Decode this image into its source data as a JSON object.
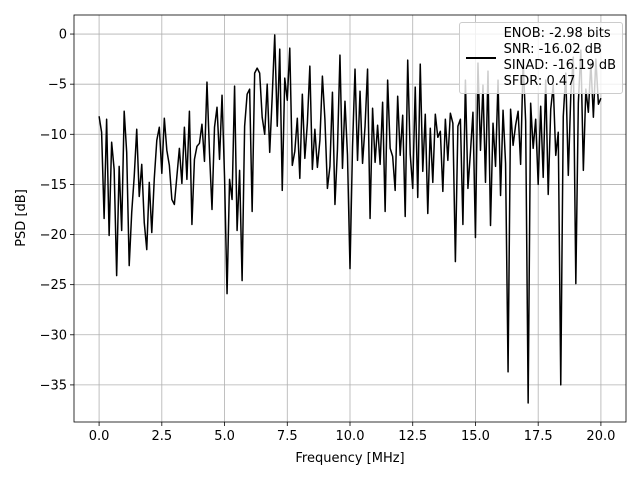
{
  "chart_data": {
    "type": "line",
    "xlabel": "Frequency [MHz]",
    "ylabel": "PSD [dB]",
    "xlim": [
      -1.0,
      21.0
    ],
    "ylim": [
      -38.7,
      1.9
    ],
    "xticks": [
      {
        "value": 0,
        "label": "0.0"
      },
      2.5,
      {
        "value": 5,
        "label": "5.0"
      },
      7.5,
      {
        "value": 10,
        "label": "10.0"
      },
      12.5,
      {
        "value": 15,
        "label": "15.0"
      },
      17.5,
      {
        "value": 20,
        "label": "20.0"
      }
    ],
    "yticks": [
      0,
      {
        "value": -5,
        "label": "−5"
      },
      {
        "value": -10,
        "label": "−10"
      },
      {
        "value": -15,
        "label": "−15"
      },
      {
        "value": -20,
        "label": "−20"
      },
      {
        "value": -25,
        "label": "−25"
      },
      {
        "value": -30,
        "label": "−30"
      },
      {
        "value": -35,
        "label": "−35"
      }
    ],
    "grid": true,
    "legend": "upper right",
    "x": [
      0,
      0.1,
      0.2,
      0.3,
      0.4,
      0.5,
      0.6,
      0.7,
      0.8,
      0.9,
      1,
      1.1,
      1.2,
      1.3,
      1.4,
      1.5,
      1.6,
      1.7,
      1.8,
      1.9,
      2,
      2.1,
      2.2,
      2.3,
      2.4,
      2.5,
      2.6,
      2.7,
      2.8,
      2.9,
      3,
      3.1,
      3.2,
      3.3,
      3.4,
      3.5,
      3.6,
      3.7,
      3.8,
      3.9,
      4,
      4.1,
      4.2,
      4.3,
      4.4,
      4.5,
      4.6,
      4.7,
      4.8,
      4.9,
      5,
      5.1,
      5.2,
      5.3,
      5.4,
      5.5,
      5.6,
      5.7,
      5.8,
      5.9,
      6,
      6.1,
      6.2,
      6.3,
      6.4,
      6.5,
      6.6,
      6.7,
      6.8,
      6.9,
      7,
      7.1,
      7.2,
      7.3,
      7.4,
      7.5,
      7.6,
      7.7,
      7.8,
      7.9,
      8,
      8.1,
      8.2,
      8.3,
      8.4,
      8.5,
      8.6,
      8.7,
      8.8,
      8.9,
      9,
      9.1,
      9.2,
      9.3,
      9.4,
      9.5,
      9.6,
      9.7,
      9.8,
      9.9,
      10,
      10.1,
      10.2,
      10.3,
      10.4,
      10.5,
      10.6,
      10.7,
      10.8,
      10.9,
      11,
      11.1,
      11.2,
      11.3,
      11.4,
      11.5,
      11.6,
      11.7,
      11.8,
      11.9,
      12,
      12.1,
      12.2,
      12.3,
      12.4,
      12.5,
      12.6,
      12.7,
      12.8,
      12.9,
      13,
      13.1,
      13.2,
      13.3,
      13.4,
      13.5,
      13.6,
      13.7,
      13.8,
      13.9,
      14,
      14.1,
      14.2,
      14.3,
      14.4,
      14.5,
      14.6,
      14.7,
      14.8,
      14.9,
      15,
      15.1,
      15.2,
      15.3,
      15.4,
      15.5,
      15.6,
      15.7,
      15.8,
      15.9,
      16,
      16.1,
      16.2,
      16.3,
      16.4,
      16.5,
      16.6,
      16.7,
      16.8,
      16.9,
      17,
      17.1,
      17.2,
      17.3,
      17.4,
      17.5,
      17.6,
      17.7,
      17.8,
      17.9,
      18,
      18.1,
      18.2,
      18.3,
      18.4,
      18.5,
      18.6,
      18.7,
      18.8,
      18.9,
      19,
      19.1,
      19.2,
      19.3,
      19.4,
      19.5,
      19.6,
      19.7,
      19.8,
      19.9,
      20
    ],
    "series": [
      {
        "name": "ENOB: -2.98 bits\nSNR: -16.02 dB\nSINAD: -16.19 dB\nSFDR: 0.47",
        "color": "#000000",
        "values": [
          -8.2,
          -9.8,
          -18.4,
          -8.5,
          -20.1,
          -10.8,
          -13.5,
          -24.1,
          -13.2,
          -19.6,
          -7.7,
          -11.8,
          -23.1,
          -17.8,
          -14.2,
          -9.5,
          -16.2,
          -13.0,
          -18.8,
          -21.5,
          -14.8,
          -19.8,
          -14.4,
          -10.6,
          -9.3,
          -13.9,
          -8.4,
          -11.6,
          -13.1,
          -16.5,
          -17.0,
          -14.2,
          -11.4,
          -14.9,
          -9.3,
          -14.5,
          -7.7,
          -19.0,
          -12.5,
          -11.2,
          -10.9,
          -9.0,
          -12.7,
          -4.8,
          -11.8,
          -17.5,
          -9.3,
          -7.3,
          -12.5,
          -6.1,
          -14.3,
          -25.9,
          -14.5,
          -16.5,
          -5.2,
          -19.6,
          -13.6,
          -24.6,
          -9.2,
          -6.0,
          -5.5,
          -17.7,
          -3.9,
          -3.4,
          -3.9,
          -8.3,
          -10.0,
          -5.0,
          -11.8,
          -6.2,
          -0.1,
          -9.2,
          -1.5,
          -15.6,
          -4.4,
          -6.6,
          -1.4,
          -13.1,
          -11.7,
          -8.4,
          -14.4,
          -6.0,
          -12.4,
          -8.9,
          -3.2,
          -13.5,
          -9.5,
          -13.3,
          -10.6,
          -4.2,
          -8.5,
          -15.4,
          -13.2,
          -5.8,
          -17.0,
          -11.5,
          -2.1,
          -13.4,
          -6.7,
          -12.1,
          -23.4,
          -11.3,
          -3.5,
          -12.6,
          -5.7,
          -12.9,
          -9.2,
          -3.5,
          -18.4,
          -7.4,
          -12.8,
          -9.1,
          -13.0,
          -6.8,
          -17.7,
          -4.6,
          -11.4,
          -12.2,
          -15.6,
          -6.2,
          -12.1,
          -8.1,
          -18.2,
          -2.6,
          -12.0,
          -15.4,
          -5.3,
          -16.3,
          -3.0,
          -13.7,
          -8.0,
          -17.9,
          -9.4,
          -14.8,
          -8.0,
          -10.3,
          -9.7,
          -15.7,
          -8.5,
          -12.6,
          -7.9,
          -8.9,
          -22.7,
          -9.2,
          -8.5,
          -19.0,
          -4.6,
          -15.4,
          -11.8,
          -7.8,
          -20.3,
          -2.9,
          -11.6,
          -5.1,
          -14.8,
          -3.7,
          -19.1,
          -8.9,
          -13.2,
          -4.6,
          -16.1,
          -7.6,
          -12.9,
          -33.7,
          -7.5,
          -11.1,
          -9.1,
          -7.7,
          -13.0,
          -2.7,
          -8.7,
          -36.8,
          -6.9,
          -11.4,
          -8.5,
          -15.0,
          -7.2,
          -14.3,
          -4.6,
          -16.0,
          -7.5,
          -5.1,
          -12.1,
          -9.8,
          -35.0,
          -8.2,
          -3.9,
          -14.1,
          -6.1,
          -2.3,
          -24.9,
          -6.9,
          -1.6,
          -13.6,
          -5.5,
          -7.8,
          -2.9,
          -8.3,
          -2.5,
          -7.0,
          -6.4
        ]
      }
    ]
  }
}
